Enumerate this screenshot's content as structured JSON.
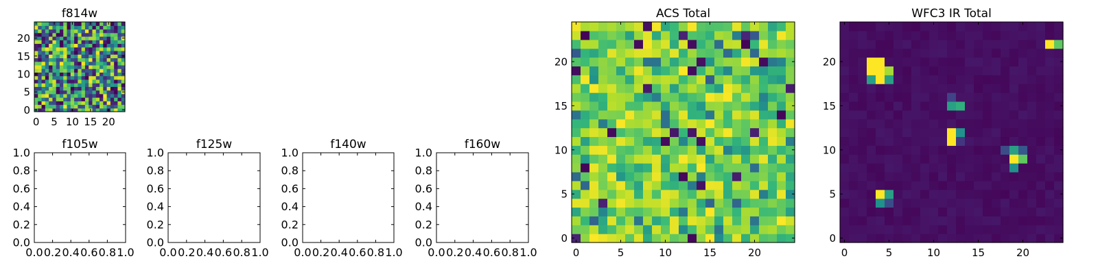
{
  "figure": {
    "background": "#ffffff",
    "colormap": "viridis"
  },
  "chart_data": [
    {
      "type": "heatmap",
      "id": "f814w",
      "title": "f814w",
      "grid_size": 25,
      "xlim": [
        -0.5,
        24.5
      ],
      "ylim": [
        -0.5,
        24.5
      ],
      "xticks": [
        0,
        5,
        10,
        15,
        20
      ],
      "yticks": [
        0,
        5,
        10,
        15,
        20
      ],
      "pattern": "uniform-noise",
      "vmin": 0,
      "vmax": 1,
      "seed": 814
    },
    {
      "type": "empty",
      "id": "f105w",
      "title": "f105w",
      "xlim": [
        0,
        1
      ],
      "ylim": [
        0,
        1
      ],
      "xticks": [
        "0.0",
        "0.2",
        "0.4",
        "0.6",
        "0.8",
        "1.0"
      ],
      "yticks": [
        "0.0",
        "0.2",
        "0.4",
        "0.6",
        "0.8",
        "1.0"
      ]
    },
    {
      "type": "empty",
      "id": "f125w",
      "title": "f125w",
      "xlim": [
        0,
        1
      ],
      "ylim": [
        0,
        1
      ],
      "xticks": [
        "0.0",
        "0.2",
        "0.4",
        "0.6",
        "0.8",
        "1.0"
      ],
      "yticks": [
        "0.0",
        "0.2",
        "0.4",
        "0.6",
        "0.8",
        "1.0"
      ]
    },
    {
      "type": "empty",
      "id": "f140w",
      "title": "f140w",
      "xlim": [
        0,
        1
      ],
      "ylim": [
        0,
        1
      ],
      "xticks": [
        "0.0",
        "0.2",
        "0.4",
        "0.6",
        "0.8",
        "1.0"
      ],
      "yticks": [
        "0.0",
        "0.2",
        "0.4",
        "0.6",
        "0.8",
        "1.0"
      ]
    },
    {
      "type": "empty",
      "id": "f160w",
      "title": "f160w",
      "xlim": [
        0,
        1
      ],
      "ylim": [
        0,
        1
      ],
      "xticks": [
        "0.0",
        "0.2",
        "0.4",
        "0.6",
        "0.8",
        "1.0"
      ],
      "yticks": [
        "0.0",
        "0.2",
        "0.4",
        "0.6",
        "0.8",
        "1.0"
      ]
    },
    {
      "type": "heatmap",
      "id": "acs-total",
      "title": "ACS Total",
      "grid_size": 25,
      "xlim": [
        -0.5,
        24.5
      ],
      "ylim": [
        -0.5,
        24.5
      ],
      "xticks": [
        0,
        5,
        10,
        15,
        20
      ],
      "yticks": [
        0,
        5,
        10,
        15,
        20
      ],
      "pattern": "noise-high",
      "vmin": 0,
      "vmax": 1,
      "seed": 2024
    },
    {
      "type": "heatmap",
      "id": "wfc3-ir-total",
      "title": "WFC3 IR Total",
      "grid_size": 25,
      "xlim": [
        -0.5,
        24.5
      ],
      "ylim": [
        -0.5,
        24.5
      ],
      "xticks": [
        0,
        5,
        10,
        15,
        20
      ],
      "yticks": [
        0,
        5,
        10,
        15,
        20
      ],
      "pattern": "sparse-sources",
      "vmin": 0,
      "vmax": 1,
      "seed": 777,
      "background_level": 0.05,
      "sources": [
        {
          "x": 4,
          "y": 20,
          "value": 1.0
        },
        {
          "x": 3,
          "y": 20,
          "value": 1.0
        },
        {
          "x": 4,
          "y": 19,
          "value": 1.0
        },
        {
          "x": 3,
          "y": 19,
          "value": 1.0
        },
        {
          "x": 4,
          "y": 18,
          "value": 1.0
        },
        {
          "x": 5,
          "y": 19,
          "value": 0.85
        },
        {
          "x": 3,
          "y": 18,
          "value": 0.55
        },
        {
          "x": 5,
          "y": 18,
          "value": 0.55
        },
        {
          "x": 23,
          "y": 22,
          "value": 1.0
        },
        {
          "x": 24,
          "y": 22,
          "value": 0.72
        },
        {
          "x": 12,
          "y": 15,
          "value": 0.55
        },
        {
          "x": 13,
          "y": 15,
          "value": 0.6
        },
        {
          "x": 12,
          "y": 16,
          "value": 0.25
        },
        {
          "x": 12,
          "y": 12,
          "value": 1.0
        },
        {
          "x": 12,
          "y": 11,
          "value": 1.0
        },
        {
          "x": 13,
          "y": 12,
          "value": 0.5
        },
        {
          "x": 13,
          "y": 11,
          "value": 0.2
        },
        {
          "x": 19,
          "y": 9,
          "value": 1.0
        },
        {
          "x": 20,
          "y": 9,
          "value": 0.72
        },
        {
          "x": 19,
          "y": 10,
          "value": 0.55
        },
        {
          "x": 19,
          "y": 8,
          "value": 0.5
        },
        {
          "x": 18,
          "y": 10,
          "value": 0.3
        },
        {
          "x": 20,
          "y": 10,
          "value": 0.35
        },
        {
          "x": 4,
          "y": 5,
          "value": 1.0
        },
        {
          "x": 5,
          "y": 5,
          "value": 0.55
        },
        {
          "x": 4,
          "y": 4,
          "value": 0.5
        },
        {
          "x": 5,
          "y": 4,
          "value": 0.3
        }
      ]
    }
  ]
}
